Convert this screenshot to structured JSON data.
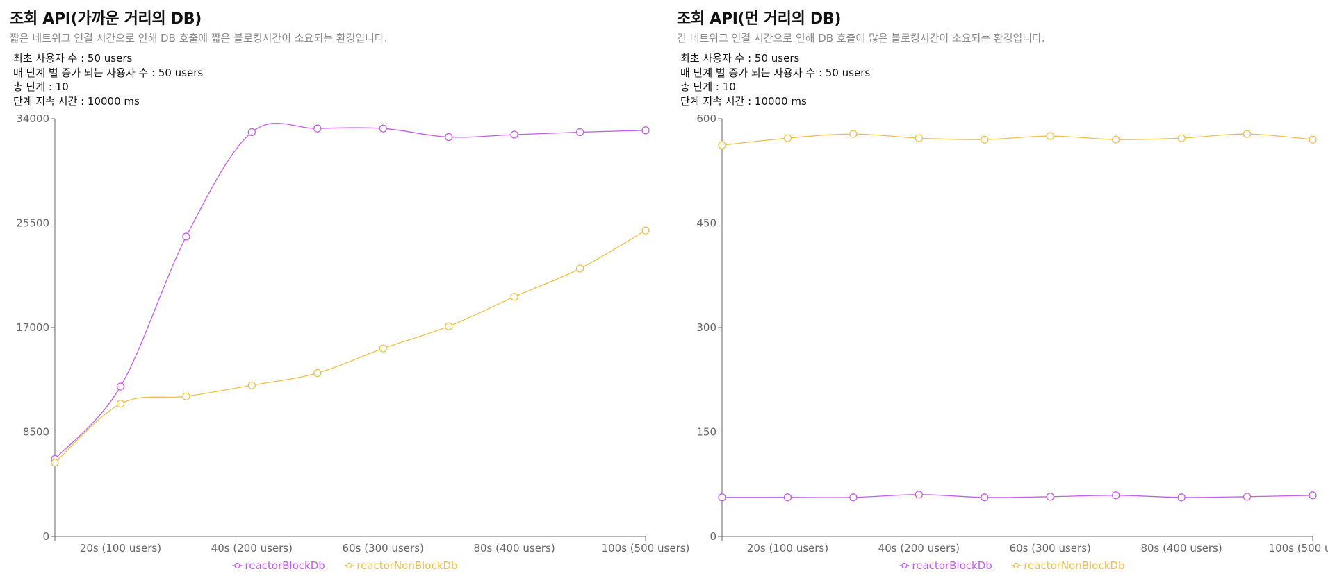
{
  "colors": {
    "reactorBlockDb": "#c65cf0",
    "reactorNonBlockDb": "#f0c048",
    "axis": "#666666"
  },
  "chart_data": [
    {
      "type": "line",
      "title": "조회 API(가까운 거리의 DB)",
      "subtitle": "짧은 네트워크 연결 시간으로 인해 DB 호출에 짧은 블로킹시간이 소요되는 환경입니다.",
      "info": [
        "최초 사용자 수 : 50 users",
        "매 단계 별 증가 되는 사용자 수 : 50 users",
        "총 단계 : 10",
        "단계 지속 시간 : 10000 ms"
      ],
      "x": [
        0,
        1,
        2,
        3,
        4,
        5,
        6,
        7,
        8,
        9
      ],
      "x_tick_labels": [
        "20s (100 users)",
        "40s (200 users)",
        "60s (300 users)",
        "80s (400 users)",
        "100s (500 users)"
      ],
      "x_tick_positions": [
        1,
        3,
        5,
        7,
        9
      ],
      "yticks": [
        0,
        8500,
        17000,
        25500,
        34000
      ],
      "ytick_labels": [
        "0",
        "8500",
        "17000",
        "25500",
        "34000"
      ],
      "ylim": [
        0,
        34000
      ],
      "series": [
        {
          "name": "reactorBlockDb",
          "values": [
            6300,
            12200,
            24400,
            32900,
            33200,
            33200,
            32500,
            32700,
            32900,
            33050
          ]
        },
        {
          "name": "reactorNonBlockDb",
          "values": [
            6000,
            10800,
            11400,
            12300,
            13300,
            15300,
            17100,
            19500,
            21800,
            24900
          ]
        }
      ],
      "legend": "bottom-center",
      "grid": false
    },
    {
      "type": "line",
      "title": "조회 API(먼 거리의 DB)",
      "subtitle": "긴 네트워크 연결 시간으로 인해 DB 호출에 많은 블로킹시간이 소요되는 환경입니다.",
      "info": [
        "최초 사용자 수 : 50 users",
        "매 단계 별 증가 되는 사용자 수 : 50 users",
        "총 단계 : 10",
        "단계 지속 시간 : 10000 ms"
      ],
      "x": [
        0,
        1,
        2,
        3,
        4,
        5,
        6,
        7,
        8,
        9
      ],
      "x_tick_labels": [
        "20s (100 users)",
        "40s (200 users)",
        "60s (300 users)",
        "80s (400 users)",
        "100s (500 users)"
      ],
      "x_tick_positions": [
        1,
        3,
        5,
        7,
        9
      ],
      "yticks": [
        0,
        150,
        300,
        450,
        600
      ],
      "ytick_labels": [
        "0",
        "150",
        "300",
        "450",
        "600"
      ],
      "ylim": [
        0,
        600
      ],
      "series": [
        {
          "name": "reactorBlockDb",
          "values": [
            56,
            56,
            56,
            60,
            56,
            57,
            59,
            56,
            57,
            59
          ]
        },
        {
          "name": "reactorNonBlockDb",
          "values": [
            562,
            572,
            578,
            572,
            570,
            575,
            570,
            572,
            578,
            570
          ]
        }
      ],
      "legend": "bottom-center",
      "grid": false
    }
  ]
}
